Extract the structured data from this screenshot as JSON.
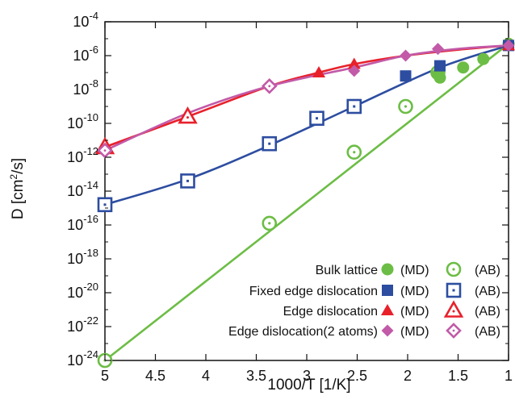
{
  "chart_data": {
    "type": "scatter",
    "xlabel": "1000/T [1/K]",
    "ylabel_main": "D [cm",
    "ylabel_sup": "2",
    "ylabel_tail": "/s]",
    "x_reversed": true,
    "xlim": [
      5,
      1
    ],
    "ylim_log10": [
      -24,
      -4
    ],
    "y_scale": "log",
    "x_ticks": [
      5,
      4.5,
      4,
      3.5,
      3,
      2.5,
      2,
      1.5,
      1
    ],
    "x_tick_labels": [
      "5",
      "4.5",
      "4",
      "3.5",
      "3",
      "2.5",
      "2",
      "1.5",
      "1"
    ],
    "y_ticks_exp": [
      -24,
      -22,
      -20,
      -18,
      -16,
      -14,
      -12,
      -10,
      -8,
      -6,
      -4
    ],
    "y_tick_base": "10",
    "y_tick_exps": [
      "-24",
      "-22",
      "-20",
      "-18",
      "-16",
      "-14",
      "-12",
      "-10",
      "-8",
      "-6",
      "-4"
    ],
    "legend_position": "bottom-right",
    "md_label": "(MD)",
    "ab_label": "(AB)",
    "series": [
      {
        "name": "Bulk lattice",
        "color": "#6cbd45",
        "md_marker": "circle",
        "ab_marker": "circle-dot",
        "md": [
          [
            1.7,
            -7.1
          ],
          [
            1.68,
            -7.3
          ],
          [
            1.45,
            -6.7
          ],
          [
            1.25,
            -6.2
          ],
          [
            1.0,
            -5.3
          ]
        ],
        "ab": [
          [
            5,
            -24
          ],
          [
            3.37,
            -15.9
          ],
          [
            2.53,
            -11.7
          ],
          [
            2.02,
            -9.0
          ],
          [
            1.7,
            -7.0
          ]
        ],
        "fit": [
          [
            5,
            -24
          ],
          [
            1.0,
            -5.3
          ]
        ]
      },
      {
        "name": "Fixed edge dislocation",
        "color": "#2d4da0",
        "md_marker": "square",
        "ab_marker": "square-dot",
        "md": [
          [
            2.02,
            -7.2
          ],
          [
            1.68,
            -6.6
          ],
          [
            1.0,
            -5.4
          ]
        ],
        "ab": [
          [
            5,
            -14.8
          ],
          [
            4.18,
            -13.4
          ],
          [
            3.37,
            -11.2
          ],
          [
            2.9,
            -9.7
          ],
          [
            2.53,
            -9.0
          ]
        ],
        "fit": [
          [
            5,
            -14.8
          ],
          [
            4.18,
            -13.3
          ],
          [
            3.37,
            -11.3
          ],
          [
            2.53,
            -9.0
          ],
          [
            1.68,
            -6.7
          ],
          [
            1.0,
            -5.4
          ]
        ]
      },
      {
        "name": "Edge dislocation",
        "color": "#e8202a",
        "md_marker": "triangle",
        "ab_marker": "triangle-dot",
        "md": [
          [
            2.88,
            -7.0
          ],
          [
            2.53,
            -6.5
          ],
          [
            1.0,
            -5.4
          ]
        ],
        "ab": [
          [
            5,
            -11.4
          ],
          [
            4.18,
            -9.6
          ]
        ],
        "fit": [
          [
            5,
            -11.4
          ],
          [
            4.18,
            -9.6
          ],
          [
            3.37,
            -7.8
          ],
          [
            2.88,
            -7.0
          ],
          [
            2.53,
            -6.5
          ],
          [
            2.02,
            -6.0
          ],
          [
            1.5,
            -5.65
          ],
          [
            1.0,
            -5.4
          ]
        ]
      },
      {
        "name": "Edge dislocation(2 atoms)",
        "color": "#c25aa8",
        "md_marker": "diamond",
        "ab_marker": "diamond-dot",
        "md": [
          [
            2.53,
            -6.9
          ],
          [
            2.02,
            -6.0
          ],
          [
            1.7,
            -5.6
          ],
          [
            1.0,
            -5.4
          ]
        ],
        "ab": [
          [
            5,
            -11.6
          ],
          [
            3.37,
            -7.8
          ]
        ],
        "fit": [
          [
            5,
            -11.6
          ],
          [
            4.18,
            -9.4
          ],
          [
            3.37,
            -7.8
          ],
          [
            2.53,
            -6.7
          ],
          [
            2.02,
            -6.0
          ],
          [
            1.5,
            -5.6
          ],
          [
            1.0,
            -5.4
          ]
        ]
      }
    ]
  }
}
